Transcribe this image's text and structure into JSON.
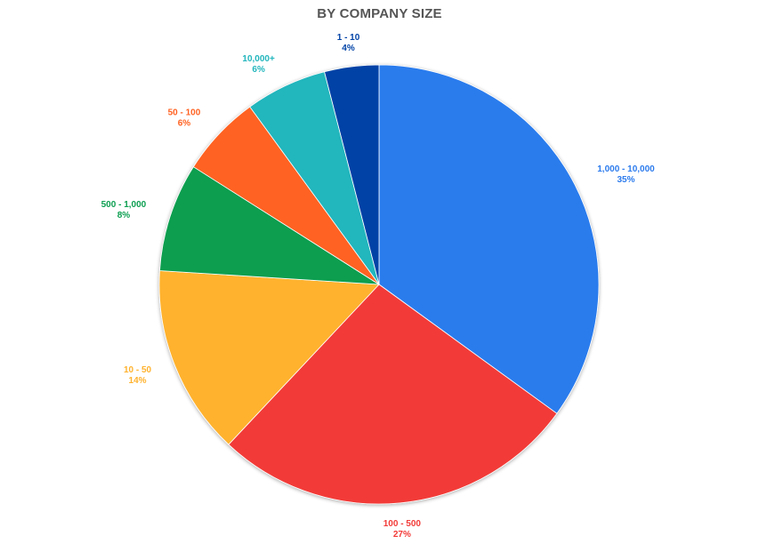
{
  "chart_data": {
    "type": "pie",
    "title": "BY COMPANY SIZE",
    "slices": [
      {
        "label": "1,000 - 10,000",
        "value": 35,
        "value_label": "35%",
        "color": "#2C7BED"
      },
      {
        "label": "100 - 500",
        "value": 27,
        "value_label": "27%",
        "color": "#F23B38"
      },
      {
        "label": "10 - 50",
        "value": 14,
        "value_label": "14%",
        "color": "#FFB22D"
      },
      {
        "label": "500 - 1,000",
        "value": 8,
        "value_label": "8%",
        "color": "#0B9E50"
      },
      {
        "label": "50 - 100",
        "value": 6,
        "value_label": "6%",
        "color": "#FF6222"
      },
      {
        "label": "10,000+",
        "value": 6,
        "value_label": "6%",
        "color": "#22B6BD"
      },
      {
        "label": "1 - 10",
        "value": 4,
        "value_label": "4%",
        "color": "#0042A6"
      }
    ],
    "start_angle_deg": 0,
    "direction": "clockwise",
    "legend": "none"
  }
}
